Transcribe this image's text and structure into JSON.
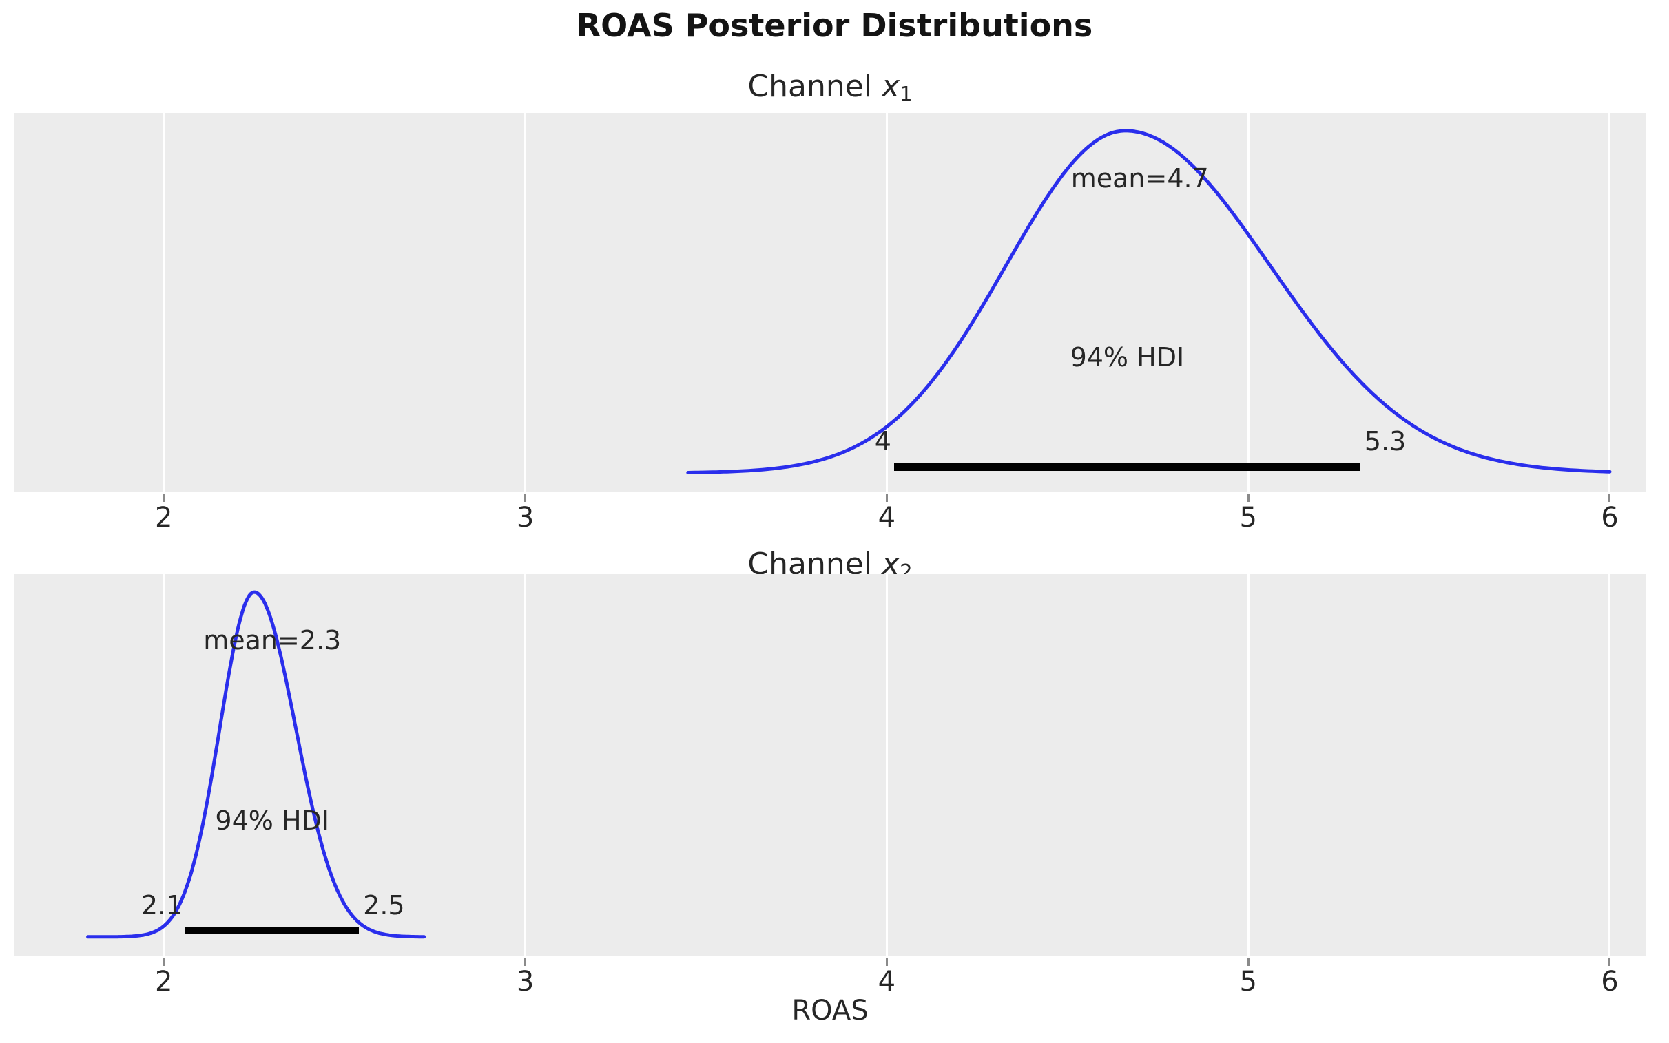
{
  "colors": {
    "curve": "#2a2eec",
    "axes_background": "#ececec",
    "gridline": "#ffffff",
    "hdi_bar": "#000000",
    "text": "#262626",
    "title": "#141414",
    "tick_mark": "#8a8a8a",
    "figure_background": "#ffffff"
  },
  "chart_data": {
    "type": "kde",
    "suptitle": "ROAS Posterior Distributions",
    "xlabel": "ROAS",
    "x_ticks": [
      2,
      3,
      4,
      5,
      6
    ],
    "x_tick_labels": [
      "2",
      "3",
      "4",
      "5",
      "6"
    ],
    "xlim": [
      1.585,
      6.101
    ],
    "hdi_text": "94% HDI",
    "grid": "vertical-white-gridlines-on",
    "legend": "none",
    "subplots": [
      {
        "title_prefix": "Channel ",
        "title_var": "x",
        "title_sub": "1",
        "mean": 4.7,
        "mean_label": "mean=4.7",
        "hdi_probability": 0.94,
        "hdi_lower_label": "4",
        "hdi_upper_label": "5.3",
        "hdi_interval": [
          4.02,
          5.31
        ],
        "curve": {
          "peak": 4.66,
          "sigma_left": 0.33,
          "sigma_right": 0.4,
          "range": [
            3.45,
            6.0
          ]
        }
      },
      {
        "title_prefix": "Channel ",
        "title_var": "x",
        "title_sub": "2",
        "mean": 2.3,
        "mean_label": "mean=2.3",
        "hdi_probability": 0.94,
        "hdi_lower_label": "2.1",
        "hdi_upper_label": "2.5",
        "hdi_interval": [
          2.06,
          2.54
        ],
        "curve": {
          "peak": 2.25,
          "sigma_left": 0.095,
          "sigma_right": 0.115,
          "range": [
            1.79,
            2.72
          ]
        }
      }
    ]
  }
}
